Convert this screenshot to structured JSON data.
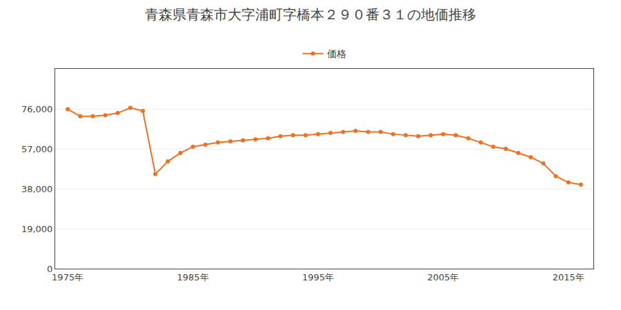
{
  "chart_data": {
    "type": "line",
    "title": "青森県青森市大字浦町字橋本２９０番３１の地価推移",
    "x": [
      1975,
      1976,
      1977,
      1978,
      1979,
      1980,
      1981,
      1982,
      1983,
      1984,
      1985,
      1986,
      1987,
      1988,
      1989,
      1990,
      1991,
      1992,
      1993,
      1994,
      1995,
      1996,
      1997,
      1998,
      1999,
      2000,
      2001,
      2002,
      2003,
      2004,
      2005,
      2006,
      2007,
      2008,
      2009,
      2010,
      2011,
      2012,
      2013,
      2014,
      2015,
      2016
    ],
    "series": [
      {
        "name": "価格",
        "color": "#f07020",
        "marker": "circle",
        "line_style": "solid",
        "values": [
          75800,
          72500,
          72500,
          73000,
          74000,
          76500,
          75000,
          45000,
          51000,
          55000,
          58000,
          59000,
          60000,
          60500,
          61000,
          61500,
          62000,
          63000,
          63500,
          63500,
          64000,
          64500,
          65000,
          65500,
          65000,
          65000,
          64000,
          63500,
          63000,
          63500,
          64000,
          63500,
          62000,
          60000,
          58000,
          57000,
          55000,
          53000,
          50000,
          44000,
          41000,
          40000
        ]
      }
    ],
    "xlim": [
      1974,
      2017
    ],
    "xticks": [
      {
        "value": 1975,
        "label": "1975年"
      },
      {
        "value": 1985,
        "label": "1985年"
      },
      {
        "value": 1995,
        "label": "1995年"
      },
      {
        "value": 2005,
        "label": "2005年"
      },
      {
        "value": 2015,
        "label": "2015年"
      }
    ],
    "ylim": [
      0,
      95000
    ],
    "yticks": [
      0,
      {
        "value": 19000,
        "label": "19,000"
      },
      {
        "value": 38000,
        "label": "38,000"
      },
      {
        "value": 57000,
        "label": "57,000"
      },
      {
        "value": 76000,
        "label": "76,000"
      }
    ],
    "grid": true,
    "legend": "top"
  }
}
